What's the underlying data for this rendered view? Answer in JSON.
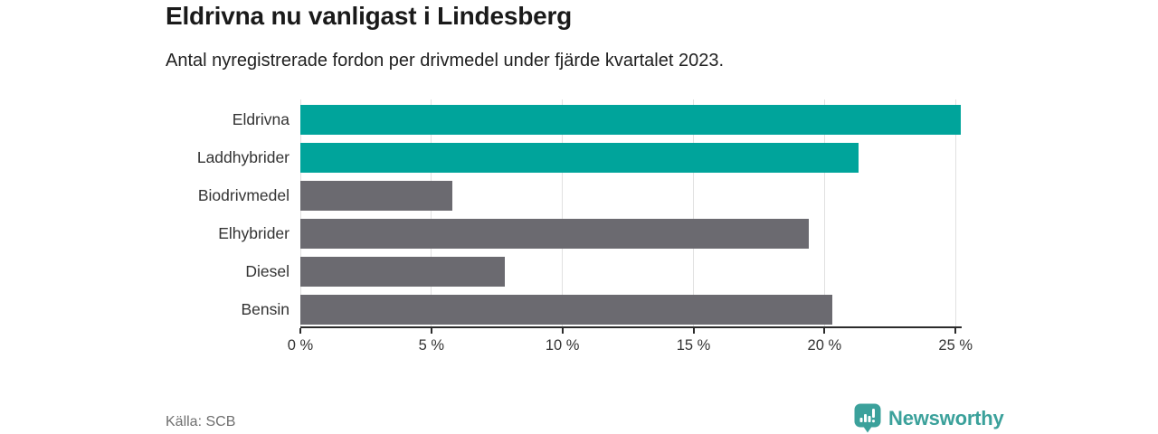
{
  "header": {
    "title": "Eldrivna nu vanligast i Lindesberg",
    "subtitle": "Antal nyregistrerade fordon per drivmedel under fjärde kvartalet 2023."
  },
  "chart_data": {
    "type": "bar",
    "orientation": "horizontal",
    "title": "Eldrivna nu vanligast i Lindesberg",
    "subtitle": "Antal nyregistrerade fordon per drivmedel under fjärde kvartalet 2023.",
    "categories": [
      "Eldrivna",
      "Laddhybrider",
      "Biodrivmedel",
      "Elhybrider",
      "Diesel",
      "Bensin"
    ],
    "values": [
      25.2,
      21.3,
      5.8,
      19.4,
      7.8,
      20.3
    ],
    "unit": "%",
    "xlabel": "",
    "ylabel": "",
    "xlim": [
      0,
      25.2
    ],
    "xticks": [
      0,
      5,
      10,
      15,
      20,
      25
    ],
    "xtick_labels": [
      "0 %",
      "5 %",
      "10 %",
      "15 %",
      "20 %",
      "25 %"
    ],
    "grid": true,
    "legend": "none",
    "bar_colors": [
      "#00a49b",
      "#00a49b",
      "#6b6a70",
      "#6b6a70",
      "#6b6a70",
      "#6b6a70"
    ],
    "highlight_color": "#00a49b",
    "default_color": "#6b6a70"
  },
  "footer": {
    "source": "Källa: SCB",
    "brand": "Newsworthy",
    "brand_color": "#3ba19b",
    "logo_icon": "bar-chart-bubble-icon"
  }
}
